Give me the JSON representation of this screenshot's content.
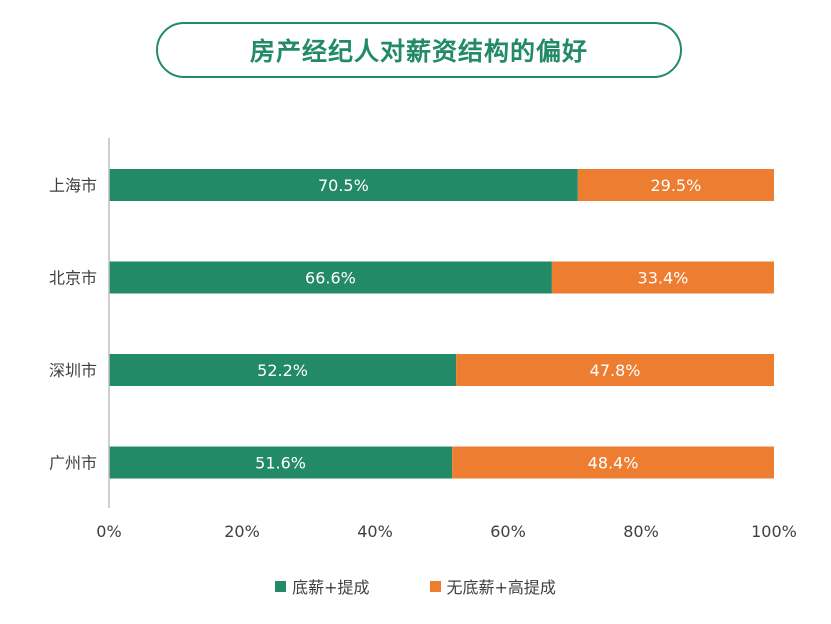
{
  "colors": {
    "accent": "#238a68",
    "series_1": "#238a68",
    "series_2": "#ed7d31",
    "axis": "#bfbfbf",
    "text": "#404040",
    "label_text": "#ffffff"
  },
  "title": "房产经纪人对薪资结构的偏好",
  "chart_data": {
    "type": "bar",
    "orientation": "horizontal",
    "stacked": true,
    "title": "房产经纪人对薪资结构的偏好",
    "categories": [
      "上海市",
      "北京市",
      "深圳市",
      "广州市"
    ],
    "series": [
      {
        "name": "底薪+提成",
        "values": [
          70.5,
          66.6,
          52.2,
          51.6
        ],
        "labels": [
          "70.5%",
          "66.6%",
          "52.2%",
          "51.6%"
        ],
        "color": "#238a68"
      },
      {
        "name": "无底薪+高提成",
        "values": [
          29.5,
          33.4,
          47.8,
          48.4
        ],
        "labels": [
          "29.5%",
          "33.4%",
          "47.8%",
          "48.4%"
        ],
        "color": "#ed7d31"
      }
    ],
    "xlim": [
      0,
      100
    ],
    "xticks": [
      "0%",
      "20%",
      "40%",
      "60%",
      "80%",
      "100%"
    ],
    "grid": false,
    "legend_position": "bottom"
  }
}
